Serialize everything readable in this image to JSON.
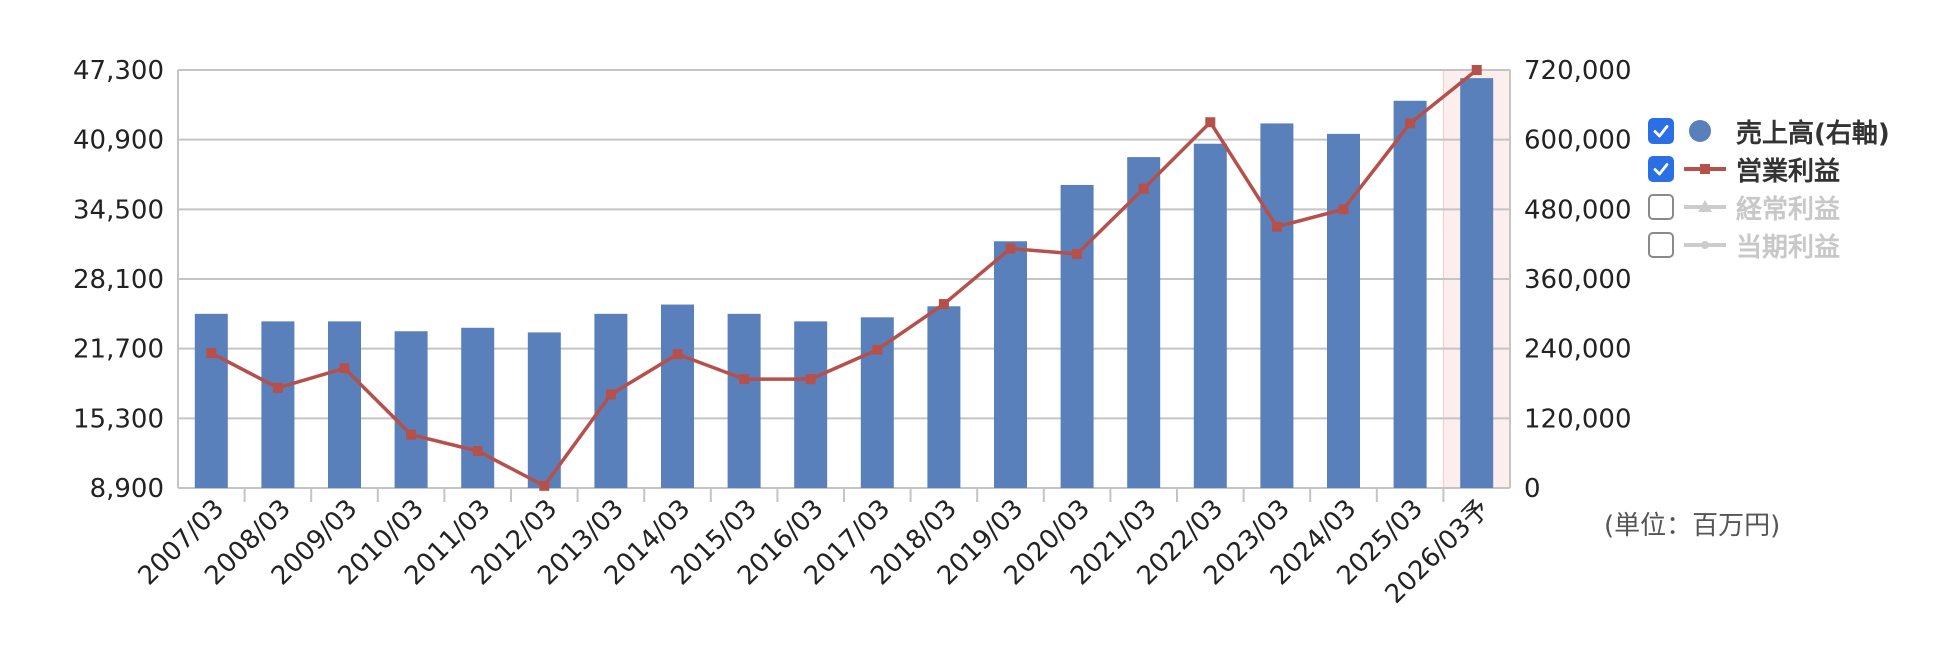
{
  "chart_data": {
    "type": "bar",
    "categories": [
      "2007/03",
      "2008/03",
      "2009/03",
      "2010/03",
      "2011/03",
      "2012/03",
      "2013/03",
      "2014/03",
      "2015/03",
      "2016/03",
      "2017/03",
      "2018/03",
      "2019/03",
      "2020/03",
      "2021/03",
      "2022/03",
      "2023/03",
      "2024/03",
      "2025/03",
      "2026/03予"
    ],
    "series": [
      {
        "name": "売上高(右軸)",
        "type": "bar",
        "axis": "right",
        "color": "#5a80bc",
        "values": [
          300000,
          287000,
          287000,
          270000,
          276000,
          268000,
          300000,
          316000,
          300000,
          287000,
          294000,
          313000,
          425000,
          522000,
          570000,
          593000,
          628000,
          610000,
          667000,
          706000
        ]
      },
      {
        "name": "営業利益",
        "type": "line",
        "axis": "left",
        "color": "#b5504b",
        "values": [
          21300,
          18100,
          19900,
          13800,
          12300,
          9100,
          17500,
          21200,
          18900,
          18900,
          21600,
          25800,
          30900,
          30400,
          36400,
          42500,
          32900,
          34500,
          42400,
          47300
        ]
      }
    ],
    "y_left": {
      "min": 8900,
      "max": 47300,
      "ticks": [
        "47,300",
        "40,900",
        "34,500",
        "28,100",
        "21,700",
        "15,300",
        "8,900"
      ]
    },
    "y_right": {
      "min": 0,
      "max": 720000,
      "ticks": [
        "720,000",
        "600,000",
        "480,000",
        "360,000",
        "240,000",
        "120,000",
        "0"
      ]
    },
    "forecast_category": "2026/03予",
    "grid": true,
    "legend_position": "right"
  },
  "legend": [
    {
      "label": "売上高(右軸)",
      "checked": true,
      "marker": "circle",
      "color": "#5a80bc"
    },
    {
      "label": "営業利益",
      "checked": true,
      "marker": "line-square",
      "color": "#b5504b"
    },
    {
      "label": "経常利益",
      "checked": false,
      "marker": "line-triangle",
      "color": "#cccccc"
    },
    {
      "label": "当期利益",
      "checked": false,
      "marker": "line-dot",
      "color": "#cccccc"
    }
  ],
  "unit_label": "(単位：百万円)"
}
